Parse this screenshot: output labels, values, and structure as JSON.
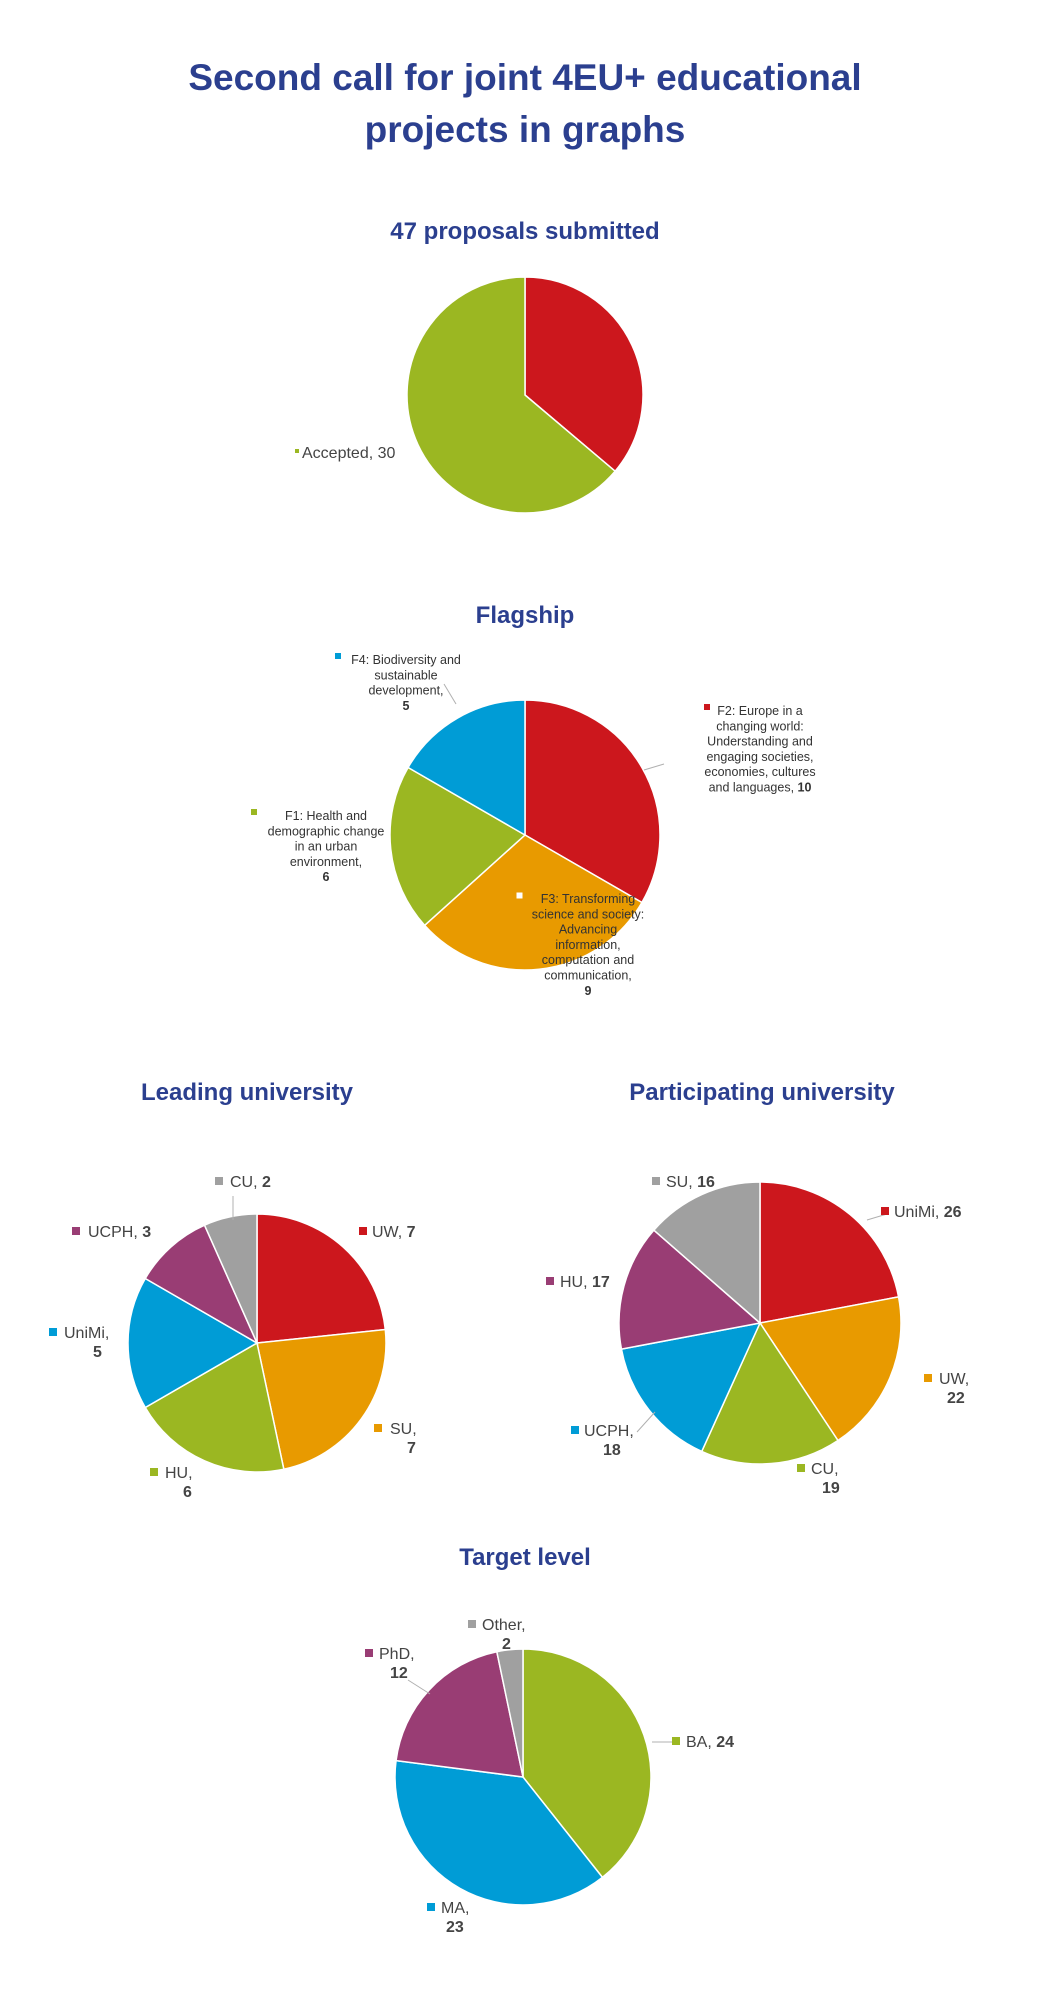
{
  "header": {
    "title_line1": "Second call for joint 4EU+ educational",
    "title_line2": "projects in graphs"
  },
  "colors": {
    "red": "#cc171d",
    "green": "#9bb722",
    "orange": "#e89a00",
    "blue": "#009cd6",
    "purple": "#993d74",
    "grey": "#a0a0a0",
    "title": "#2b3f8f"
  },
  "chart_data": [
    {
      "id": "proposals",
      "type": "pie",
      "title": "47 proposals submitted",
      "slices": [
        {
          "label": "",
          "value": 17,
          "color": "#cc171d"
        },
        {
          "label": "Accepted",
          "value": 30,
          "color": "#9bb722",
          "label_text": "Accepted, 30"
        }
      ]
    },
    {
      "id": "flagship",
      "type": "pie",
      "title": "Flagship",
      "slices": [
        {
          "label": "F2: Europe in a changing world: Understanding and engaging societies, economies, cultures and languages",
          "value": 10,
          "color": "#cc171d",
          "label_lines": [
            "F2: Europe in a",
            "changing world:",
            "Understanding and",
            "engaging societies,",
            "economies, cultures",
            "and languages,"
          ],
          "value_text": "10"
        },
        {
          "label": "F3: Transforming science and society: Advancing information, computation and communication",
          "value": 9,
          "color": "#e89a00",
          "label_lines": [
            "F3: Transforming",
            "science and society:",
            "Advancing",
            "information,",
            "computation and",
            "communication,"
          ],
          "value_text": "9"
        },
        {
          "label": "F1: Health and demographic change in an urban environment",
          "value": 6,
          "color": "#9bb722",
          "label_lines": [
            "F1: Health and",
            "demographic change",
            "in an urban",
            "environment,"
          ],
          "value_text": "6"
        },
        {
          "label": "F4: Biodiversity and sustainable development",
          "value": 5,
          "color": "#009cd6",
          "label_lines": [
            "F4: Biodiversity and",
            "sustainable",
            "development,"
          ],
          "value_text": "5"
        }
      ]
    },
    {
      "id": "leading",
      "type": "pie",
      "title": "Leading university",
      "slices": [
        {
          "label": "UW",
          "value": 7,
          "color": "#cc171d",
          "label_lines": [
            "UW,"
          ],
          "value_text": "7"
        },
        {
          "label": "SU",
          "value": 7,
          "color": "#e89a00",
          "label_lines": [
            "SU,"
          ],
          "value_text": "7"
        },
        {
          "label": "HU",
          "value": 6,
          "color": "#9bb722",
          "label_lines": [
            "HU,"
          ],
          "value_text": "6"
        },
        {
          "label": "UniMi",
          "value": 5,
          "color": "#009cd6",
          "label_lines": [
            "UniMi,"
          ],
          "value_text": "5"
        },
        {
          "label": "UCPH",
          "value": 3,
          "color": "#993d74",
          "label_lines": [
            "UCPH,"
          ],
          "value_text": "3"
        },
        {
          "label": "CU",
          "value": 2,
          "color": "#a0a0a0",
          "label_lines": [
            "CU,"
          ],
          "value_text": "2"
        }
      ]
    },
    {
      "id": "participating",
      "type": "pie",
      "title": "Participating university",
      "slices": [
        {
          "label": "UniMi",
          "value": 26,
          "color": "#cc171d",
          "label_lines": [
            "UniMi,"
          ],
          "value_text": "26"
        },
        {
          "label": "UW",
          "value": 22,
          "color": "#e89a00",
          "label_lines": [
            "UW,"
          ],
          "value_text": "22"
        },
        {
          "label": "CU",
          "value": 19,
          "color": "#9bb722",
          "label_lines": [
            "CU,"
          ],
          "value_text": "19"
        },
        {
          "label": "UCPH",
          "value": 18,
          "color": "#009cd6",
          "label_lines": [
            "UCPH,"
          ],
          "value_text": "18"
        },
        {
          "label": "HU",
          "value": 17,
          "color": "#993d74",
          "label_lines": [
            "HU,"
          ],
          "value_text": "17"
        },
        {
          "label": "SU",
          "value": 16,
          "color": "#a0a0a0",
          "label_lines": [
            "SU,"
          ],
          "value_text": "16"
        }
      ]
    },
    {
      "id": "target",
      "type": "pie",
      "title": "Target level",
      "slices": [
        {
          "label": "BA",
          "value": 24,
          "color": "#9bb722",
          "label_lines": [
            "BA,"
          ],
          "value_text": "24"
        },
        {
          "label": "MA",
          "value": 23,
          "color": "#009cd6",
          "label_lines": [
            "MA,"
          ],
          "value_text": "23"
        },
        {
          "label": "PhD",
          "value": 12,
          "color": "#993d74",
          "label_lines": [
            "PhD,"
          ],
          "value_text": "12"
        },
        {
          "label": "Other",
          "value": 2,
          "color": "#a0a0a0",
          "label_lines": [
            "Other,"
          ],
          "value_text": "2"
        }
      ]
    }
  ]
}
